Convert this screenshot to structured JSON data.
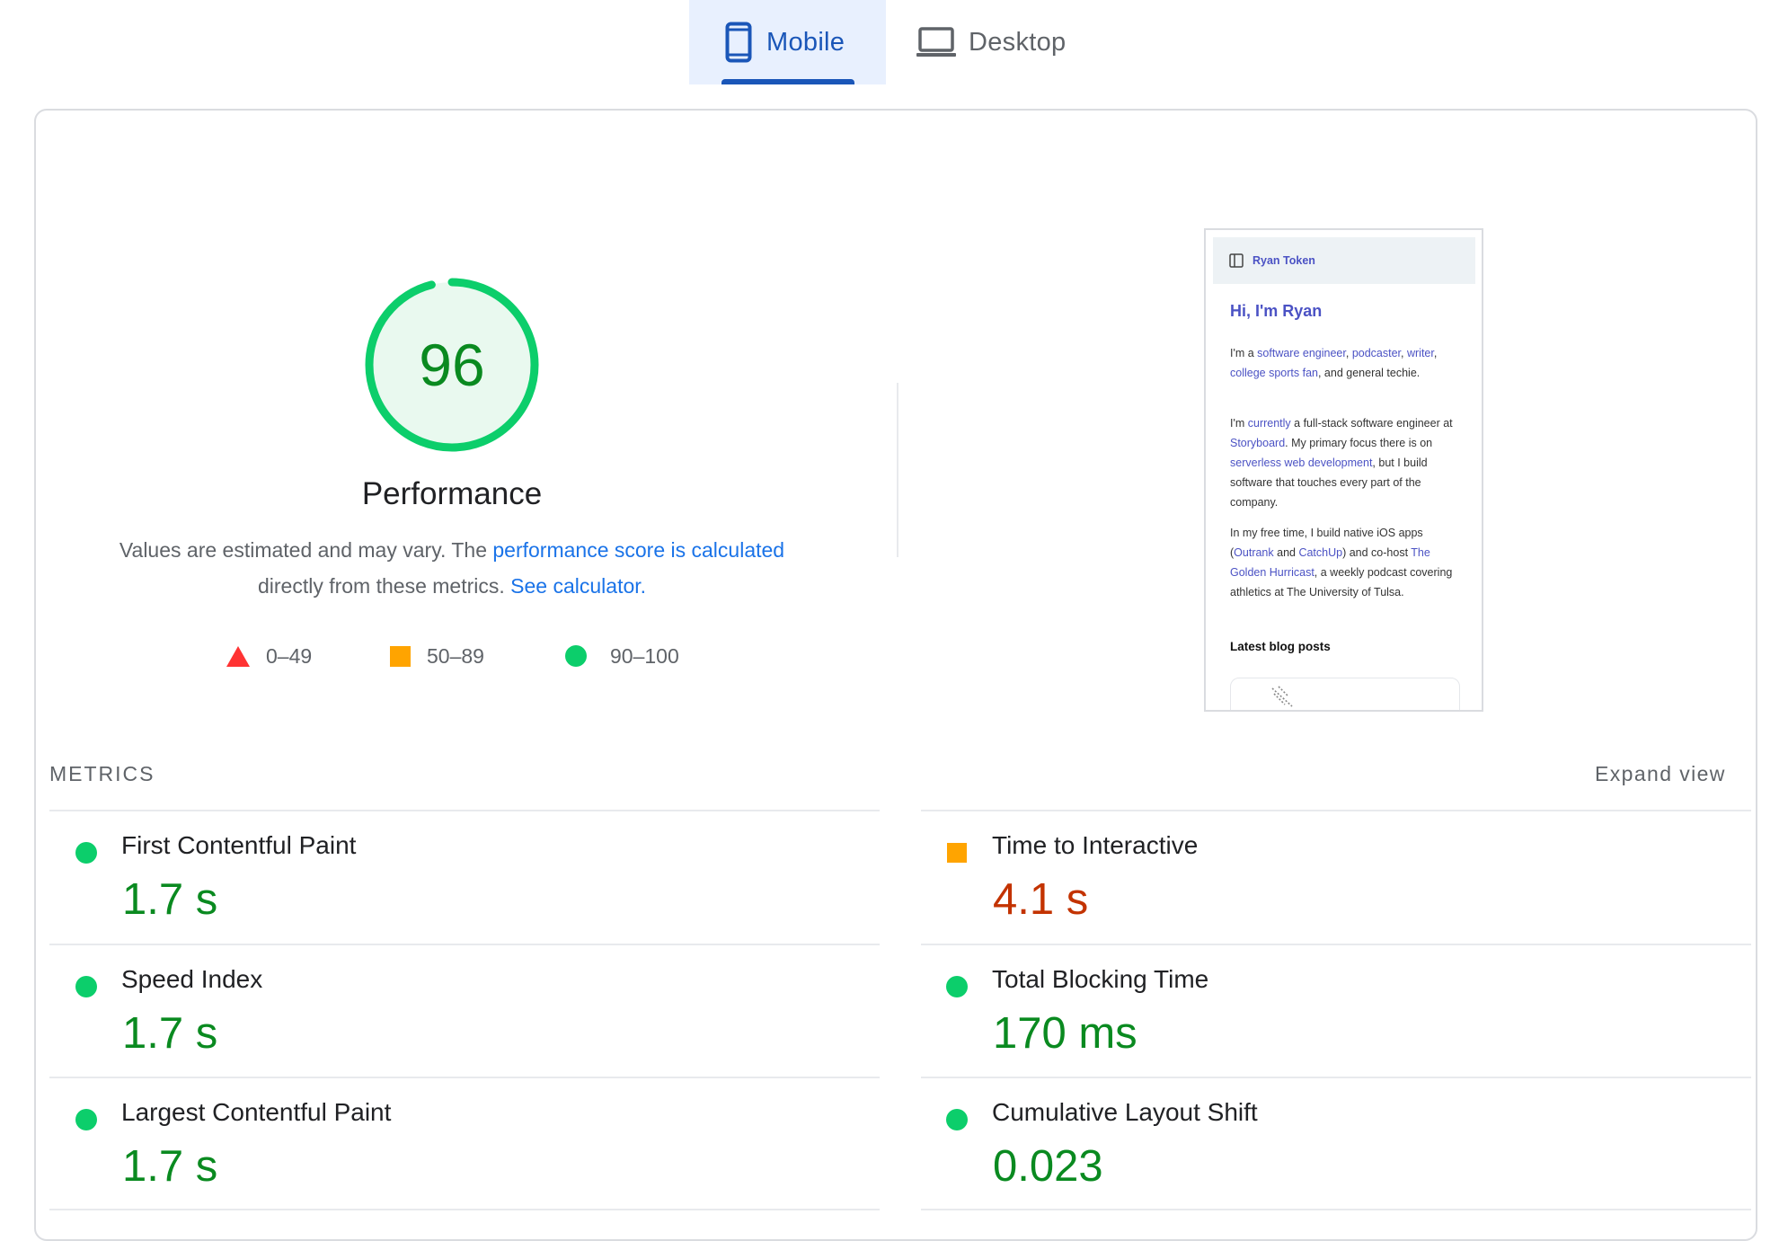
{
  "tabs": [
    {
      "label": "Mobile",
      "icon": "smartphone-icon",
      "selected": true
    },
    {
      "label": "Desktop",
      "icon": "laptop-icon",
      "selected": false
    }
  ],
  "performance": {
    "score": "96",
    "score_fraction": 0.96,
    "title": "Performance",
    "desc_text": "Values are estimated and may vary. The ",
    "desc_link": "performance score is calculated",
    "desc_text2": " directly from these metrics. ",
    "calc_link": "See calculator.",
    "ring_color": "#0cce6b",
    "score_color": "#0a8a20"
  },
  "legend": [
    {
      "shape": "triangle",
      "label": "0–49",
      "color": "#ff3333"
    },
    {
      "shape": "square",
      "label": "50–89",
      "color": "#ffa400"
    },
    {
      "shape": "circle",
      "label": "90–100",
      "color": "#0cce6b"
    }
  ],
  "preview": {
    "site_name": "Ryan Token",
    "heading": "Hi, I'm Ryan",
    "latest": "Latest blog posts"
  },
  "metrics_section": {
    "label": "METRICS",
    "expand": "Expand view"
  },
  "metrics": [
    {
      "name": "First Contentful Paint",
      "value": "1.7 s",
      "rating": "good"
    },
    {
      "name": "Time to Interactive",
      "value": "4.1 s",
      "rating": "average"
    },
    {
      "name": "Speed Index",
      "value": "1.7 s",
      "rating": "good"
    },
    {
      "name": "Total Blocking Time",
      "value": "170 ms",
      "rating": "good"
    },
    {
      "name": "Largest Contentful Paint",
      "value": "1.7 s",
      "rating": "good"
    },
    {
      "name": "Cumulative Layout Shift",
      "value": "0.023",
      "rating": "good"
    }
  ]
}
